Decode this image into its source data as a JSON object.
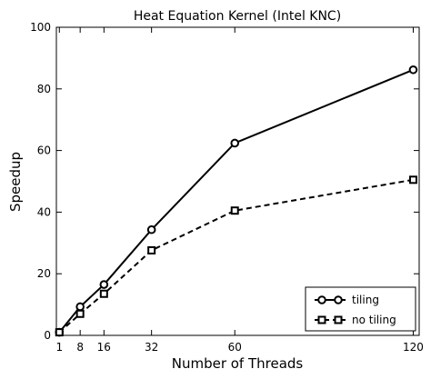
{
  "chart_data": {
    "type": "line",
    "title": "Heat Equation Kernel (Intel KNC)",
    "xlabel": "Number of Threads",
    "ylabel": "Speedup",
    "x": [
      1,
      8,
      16,
      32,
      60,
      120
    ],
    "xticks": [
      1,
      8,
      16,
      32,
      60,
      120
    ],
    "yticks": [
      0,
      20,
      40,
      60,
      80,
      100
    ],
    "xlim": [
      0,
      122
    ],
    "ylim": [
      0,
      100
    ],
    "grid": false,
    "legend_position": "bottom-right",
    "series": [
      {
        "name": "tiling",
        "values": [
          1,
          9.3,
          16.5,
          34.3,
          62.4,
          86.2
        ],
        "line_style": "solid",
        "marker": "circle",
        "color": "#000000"
      },
      {
        "name": "no tiling",
        "values": [
          1,
          7.0,
          13.5,
          27.6,
          40.5,
          50.5
        ],
        "line_style": "dashed",
        "marker": "square",
        "color": "#000000"
      }
    ]
  }
}
